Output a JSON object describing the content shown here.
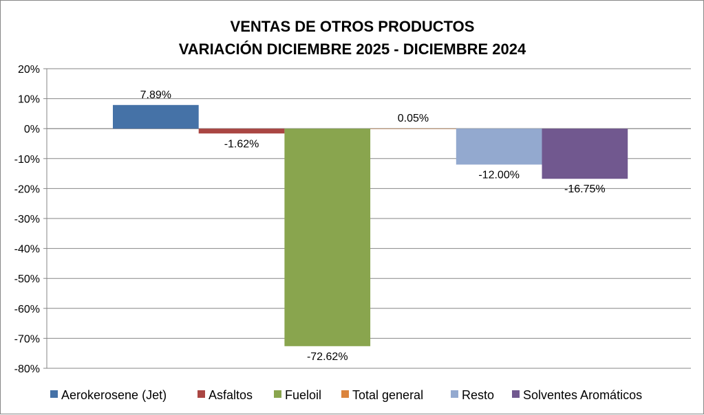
{
  "chart_data": {
    "type": "bar",
    "title": [
      "VENTAS DE OTROS PRODUCTOS",
      "VARIACIÓN DICIEMBRE 2025 - DICIEMBRE 2024"
    ],
    "xlabel": "",
    "ylabel": "",
    "ylim": [
      -80,
      20
    ],
    "y_ticks": [
      "20%",
      "10%",
      "0%",
      "-10%",
      "-20%",
      "-30%",
      "-40%",
      "-50%",
      "-60%",
      "-70%",
      "-80%"
    ],
    "y_tick_values": [
      20,
      10,
      0,
      -10,
      -20,
      -30,
      -40,
      -50,
      -60,
      -70,
      -80
    ],
    "grid": true,
    "legend_position": "bottom",
    "series": [
      {
        "name": "Aerokerosene (Jet)",
        "value": 7.89,
        "label": "7.89%",
        "color": "#4572A7"
      },
      {
        "name": "Asfaltos",
        "value": -1.62,
        "label": "-1.62%",
        "color": "#AA4643"
      },
      {
        "name": "Fueloil",
        "value": -72.62,
        "label": "-72.62%",
        "color": "#89A54E"
      },
      {
        "name": "Total general",
        "value": 0.05,
        "label": "0.05%",
        "color": "#DB843D"
      },
      {
        "name": "Resto",
        "value": -12.0,
        "label": "-12.00%",
        "color": "#93A9CF"
      },
      {
        "name": "Solventes Aromáticos",
        "value": -16.75,
        "label": "-16.75%",
        "color": "#71588F"
      }
    ]
  }
}
